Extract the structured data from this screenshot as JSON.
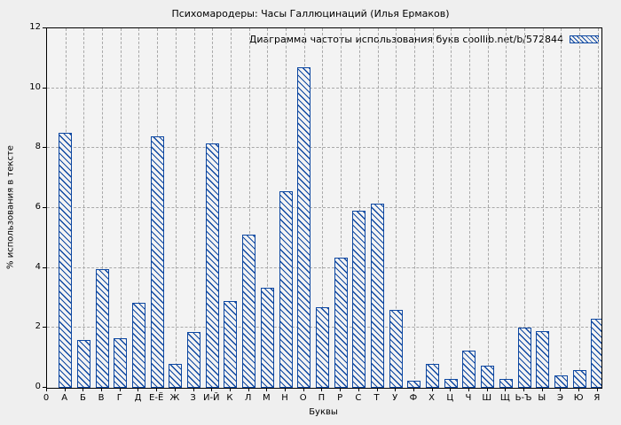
{
  "window": {
    "background_color": "#efefef",
    "plot_background_color": "#f3f3f3",
    "grid_color": "#a8a8a8",
    "bar_color": "#0d47a1"
  },
  "chart_data": {
    "type": "bar",
    "title": "Психомародеры: Часы Галлюцинаций (Илья Ермаков)",
    "legend": "Диаграмма частоты использования букв coollib.net/b/572844",
    "legend_position": "top-right",
    "xlabel": "Буквы",
    "ylabel": "% использования в тексте",
    "categories": [
      "А",
      "Б",
      "В",
      "Г",
      "Д",
      "Е-Ё",
      "Ж",
      "З",
      "И-Й",
      "К",
      "Л",
      "М",
      "Н",
      "О",
      "П",
      "Р",
      "С",
      "Т",
      "У",
      "Ф",
      "Х",
      "Ц",
      "Ч",
      "Ш",
      "Щ",
      "Ь-Ъ",
      "Ы",
      "Э",
      "Ю",
      "Я"
    ],
    "values": [
      8.5,
      1.6,
      3.95,
      1.65,
      2.85,
      8.4,
      0.8,
      1.85,
      8.15,
      2.9,
      5.1,
      3.35,
      6.55,
      10.7,
      2.7,
      4.35,
      5.9,
      6.15,
      2.6,
      0.25,
      0.8,
      0.3,
      1.25,
      0.75,
      0.3,
      2.0,
      1.9,
      0.4,
      0.6,
      2.3
    ],
    "ylim": [
      0,
      12
    ],
    "yticks": [
      0,
      2,
      4,
      6,
      8,
      10,
      12
    ],
    "x_origin_label": "0",
    "grid": true,
    "hatch": "diagonal-backslash"
  }
}
